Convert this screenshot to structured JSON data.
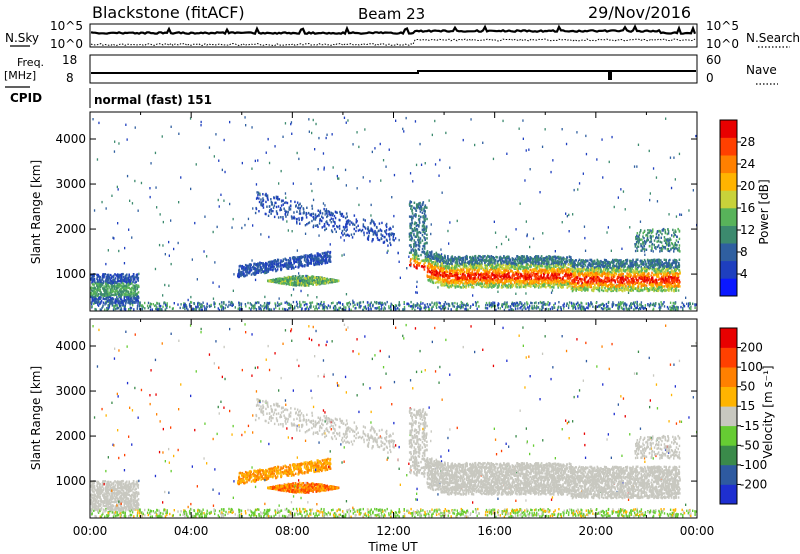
{
  "header": {
    "station": "Blackstone (fitACF)",
    "beam": "Beam 23",
    "date": "29/Nov/2016"
  },
  "noise_panel": {
    "left_label": "N.Sky",
    "left_ticks": [
      "10^5",
      "10^0"
    ],
    "right_label": "N.Search",
    "right_ticks": [
      "10^5",
      "10^0"
    ]
  },
  "freq_panel": {
    "left_label_1": "Freq.",
    "left_label_2": "[MHz]",
    "left_ticks": [
      "18",
      "8"
    ],
    "right_label": "Nave",
    "right_ticks": [
      "60",
      "0"
    ]
  },
  "cpid": {
    "label": "CPID",
    "value": "normal (fast) 151"
  },
  "colors": {
    "power_scale": [
      "#0a18ff",
      "#1e3fbf",
      "#2f5fa0",
      "#3c8a6e",
      "#58b35a",
      "#c8d23a",
      "#ffb400",
      "#ff8000",
      "#ff4000",
      "#e80000"
    ],
    "velocity_scale": [
      "#1e2fd0",
      "#2e5aa0",
      "#3a8a4a",
      "#66cc33",
      "#c8c8c0",
      "#ffb400",
      "#ff8000",
      "#ff4000",
      "#e80000"
    ]
  },
  "chart_data": [
    {
      "type": "heatmap",
      "name": "Power",
      "ylabel": "Slant Range [km]",
      "xlabel": "",
      "ylim": [
        180,
        4600
      ],
      "xlim": [
        0,
        24
      ],
      "y_ticks": [
        "1000",
        "2000",
        "3000",
        "4000"
      ],
      "colorbar": {
        "label": "Power [dB]",
        "ticks": [
          "4",
          "8",
          "12",
          "16",
          "20",
          "24",
          "28"
        ],
        "range": [
          0,
          32
        ]
      }
    },
    {
      "type": "heatmap",
      "name": "Velocity",
      "ylabel": "Slant Range [km]",
      "xlabel": "Time UT",
      "ylim": [
        180,
        4600
      ],
      "xlim": [
        0,
        24
      ],
      "y_ticks": [
        "1000",
        "2000",
        "3000",
        "4000"
      ],
      "x_ticks": [
        "00:00",
        "04:00",
        "08:00",
        "12:00",
        "16:00",
        "20:00",
        "00:00"
      ],
      "colorbar": {
        "label": "Velocity [m s⁻¹]",
        "ticks": [
          "200",
          "100",
          "50",
          "15",
          "-15",
          "-50",
          "-100",
          "-200"
        ]
      }
    }
  ]
}
